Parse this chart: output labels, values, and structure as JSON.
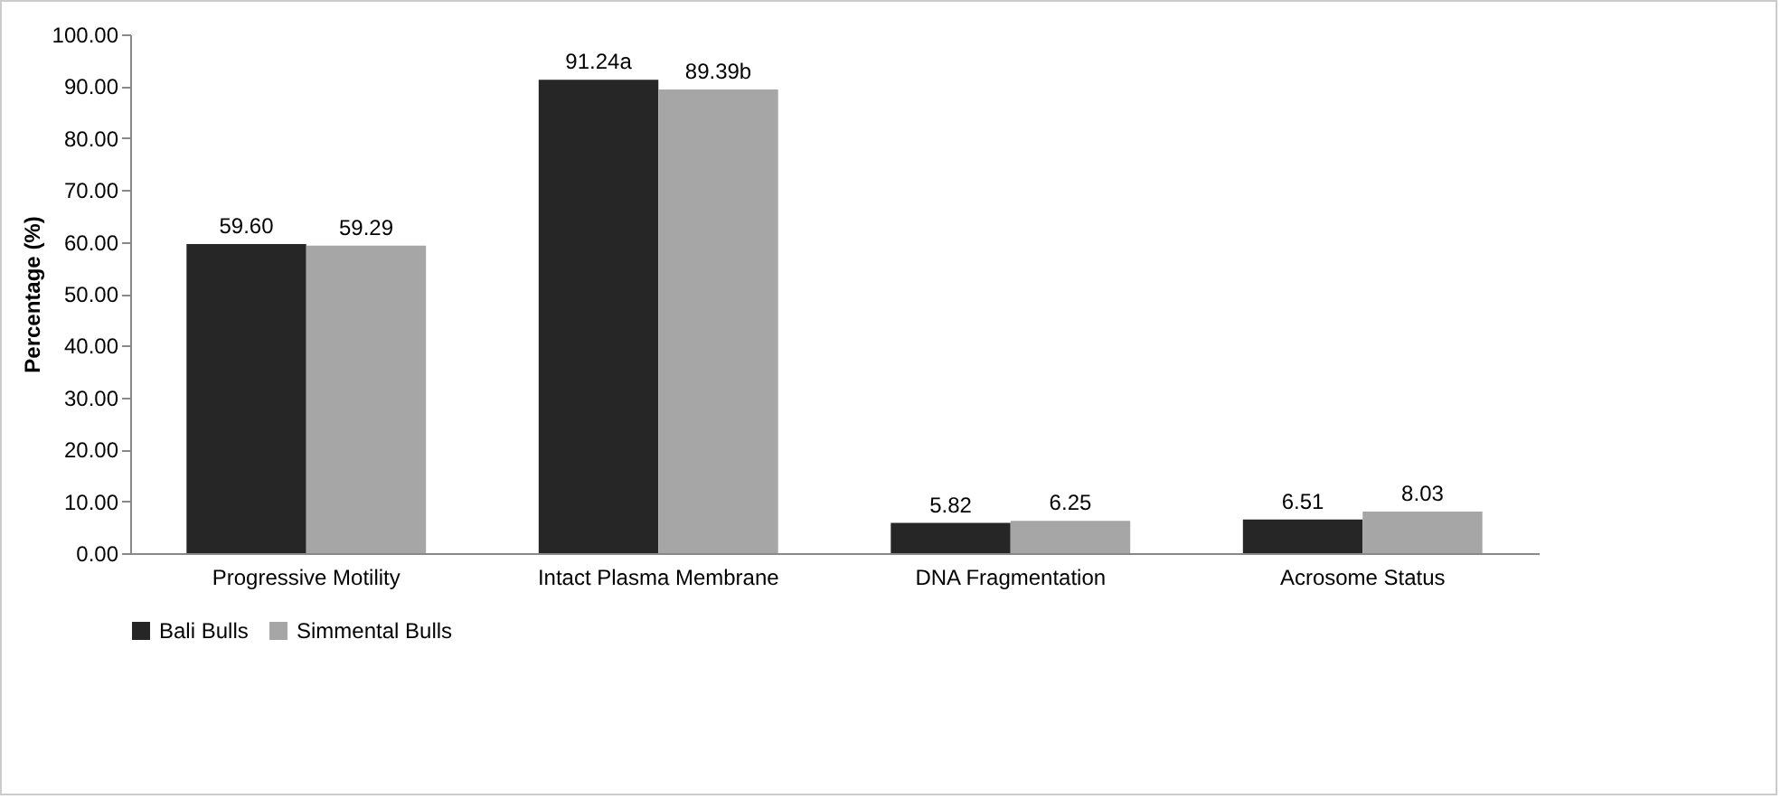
{
  "chart_data": {
    "type": "bar",
    "ylabel": "Percentage (%)",
    "categories": [
      "Progressive Motility",
      "Intact Plasma Membrane",
      "DNA Fragmentation",
      "Acrosome Status"
    ],
    "series": [
      {
        "name": "Bali Bulls",
        "color": "#262626",
        "values": [
          59.6,
          91.24,
          5.82,
          6.51
        ],
        "value_labels": [
          "59.60",
          "91.24a",
          "5.82",
          "6.51"
        ]
      },
      {
        "name": "Simmental Bulls",
        "color": "#a6a6a6",
        "values": [
          59.29,
          89.39,
          6.25,
          8.03
        ],
        "value_labels": [
          "59.29",
          "89.39b",
          "6.25",
          "8.03"
        ]
      }
    ],
    "ylim": [
      0,
      100
    ],
    "yticks": [
      {
        "value": 0,
        "label": "0.00"
      },
      {
        "value": 10,
        "label": "10.00"
      },
      {
        "value": 20,
        "label": "20.00"
      },
      {
        "value": 30,
        "label": "30.00"
      },
      {
        "value": 40,
        "label": "40.00"
      },
      {
        "value": 50,
        "label": "50.00"
      },
      {
        "value": 60,
        "label": "60.00"
      },
      {
        "value": 70,
        "label": "70.00"
      },
      {
        "value": 80,
        "label": "80.00"
      },
      {
        "value": 90,
        "label": "90.00"
      },
      {
        "value": 100,
        "label": "100.00"
      }
    ],
    "grid": false,
    "legend": "bottom"
  }
}
